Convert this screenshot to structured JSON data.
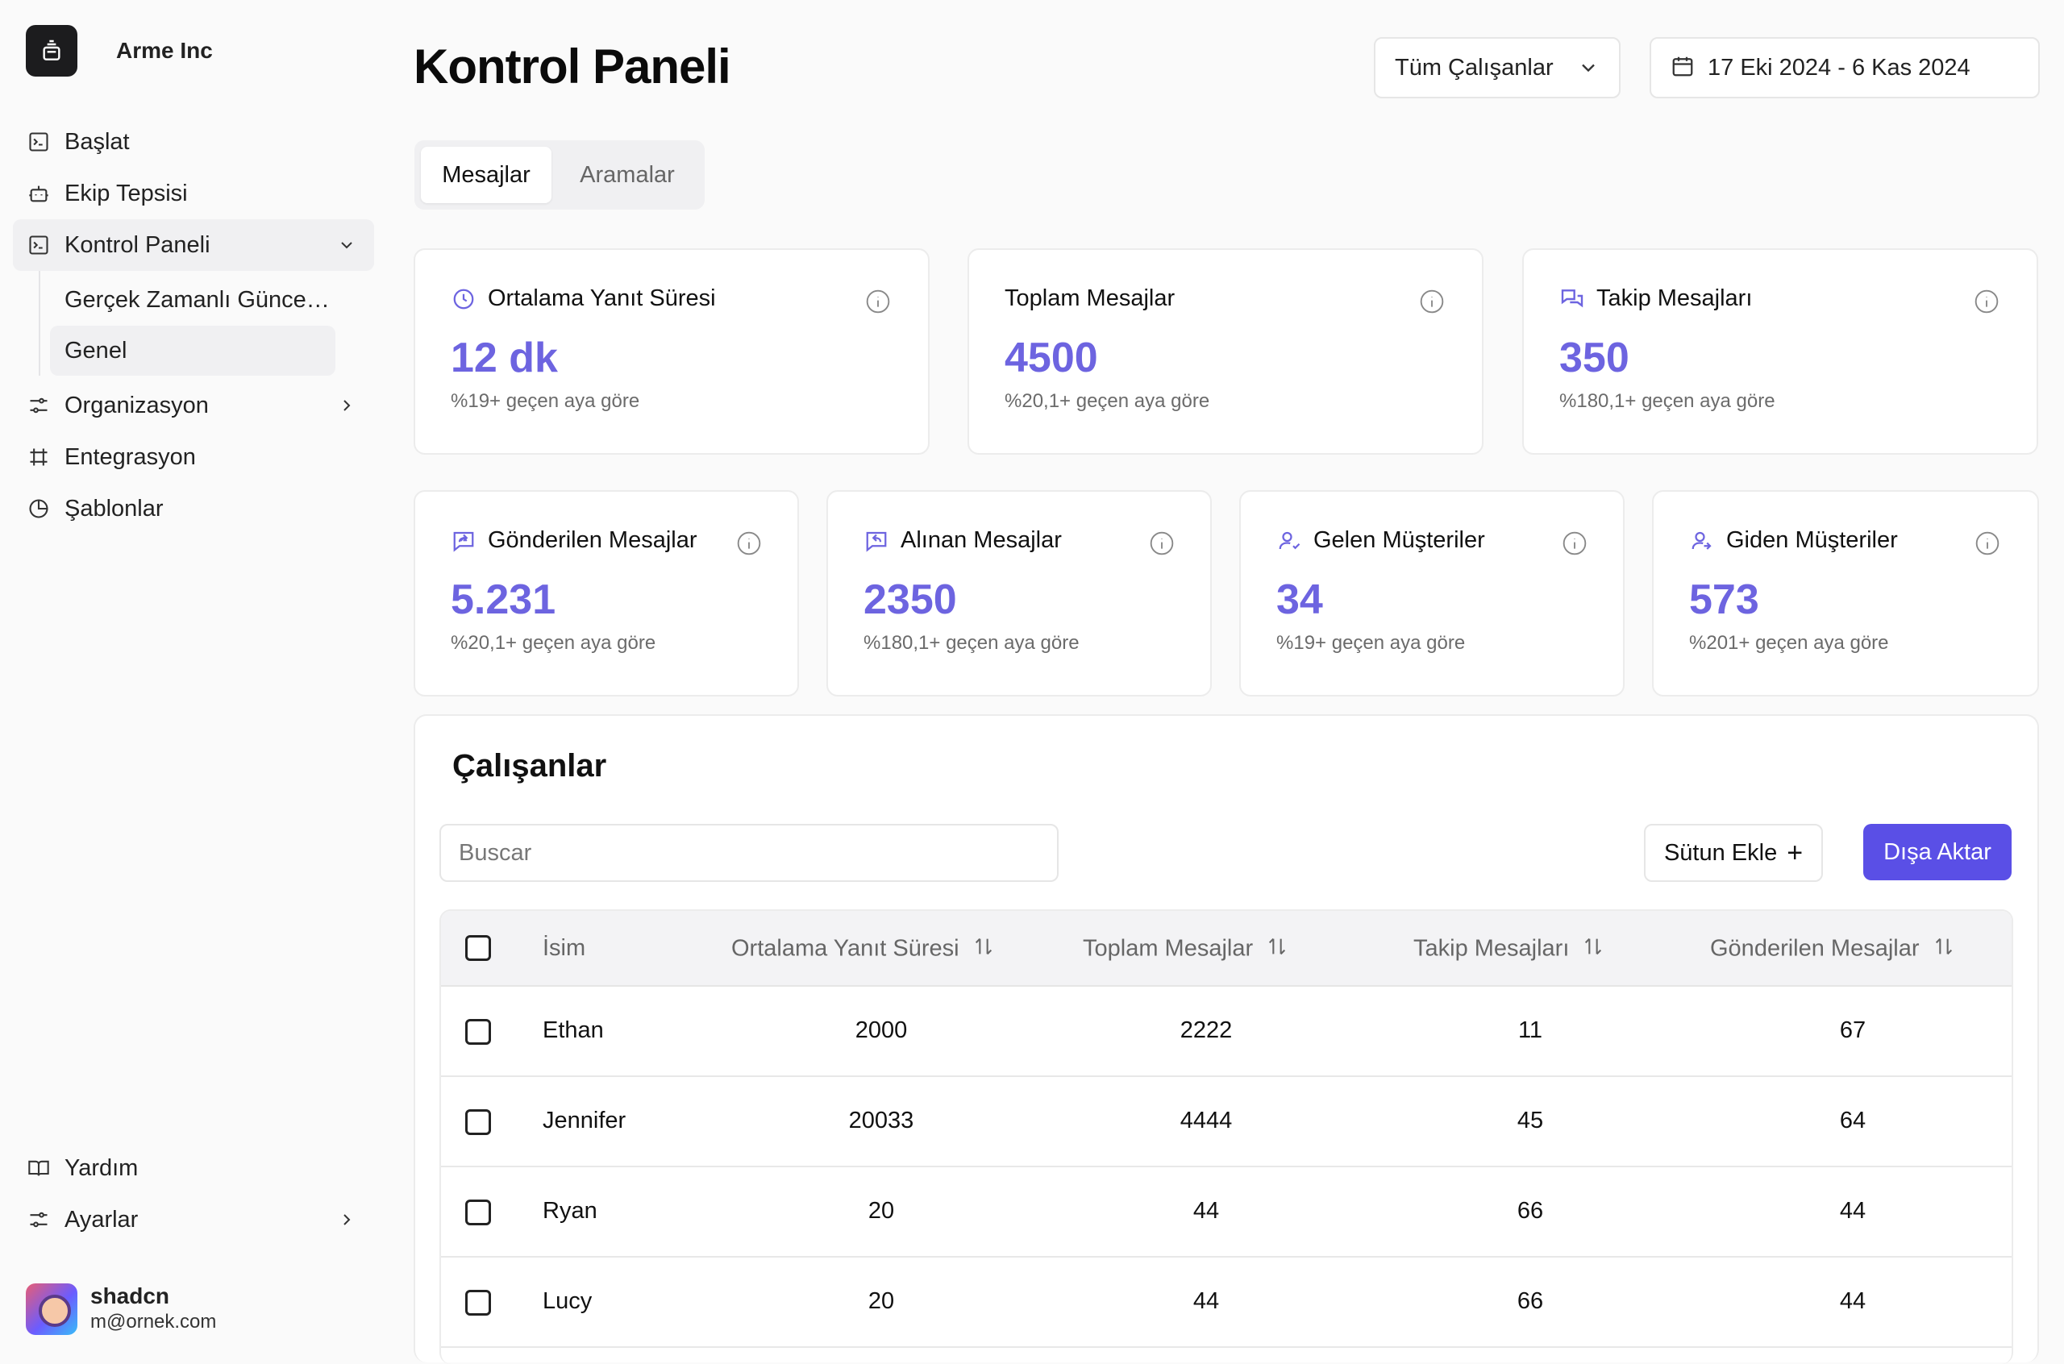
{
  "brand": {
    "name": "Arme Inc"
  },
  "sidebar": {
    "items": [
      {
        "label": "Başlat"
      },
      {
        "label": "Ekip Tepsisi"
      },
      {
        "label": "Kontrol Paneli"
      },
      {
        "label": "Organizasyon"
      },
      {
        "label": "Entegrasyon"
      },
      {
        "label": "Şablonlar"
      }
    ],
    "subitems": [
      {
        "label": "Gerçek Zamanlı Güncellemeler"
      },
      {
        "label": "Genel"
      }
    ],
    "bottom": [
      {
        "label": "Yardım"
      },
      {
        "label": "Ayarlar"
      }
    ]
  },
  "user": {
    "name": "shadcn",
    "email": "m@ornek.com"
  },
  "header": {
    "title": "Kontrol Paneli",
    "employee_filter": "Tüm Çalışanlar",
    "date_range": "17 Eki 2024 - 6 Kas 2024"
  },
  "tabs": [
    {
      "label": "Mesajlar"
    },
    {
      "label": "Aramalar"
    }
  ],
  "stats": [
    {
      "title": "Ortalama Yanıt Süresi",
      "value": "12 dk",
      "change": "%19+ geçen aya göre",
      "icon": "clock-icon"
    },
    {
      "title": "Toplam Mesajlar",
      "value": "4500",
      "change": "%20,1+ geçen aya göre",
      "icon": ""
    },
    {
      "title": "Takip Mesajları",
      "value": "350",
      "change": "%180,1+ geçen aya göre",
      "icon": "chat-icon"
    },
    {
      "title": "Gönderilen Mesajlar",
      "value": "5.231",
      "change": "%20,1+ geçen aya göre",
      "icon": "message-forward-icon"
    },
    {
      "title": "Alınan Mesajlar",
      "value": "2350",
      "change": "%180,1+ geçen aya göre",
      "icon": "message-reply-icon"
    },
    {
      "title": "Gelen Müşteriler",
      "value": "34",
      "change": "%19+ geçen aya göre",
      "icon": "user-incoming-icon"
    },
    {
      "title": "Giden Müşteriler",
      "value": "573",
      "change": "%201+ geçen aya göre",
      "icon": "user-outgoing-icon"
    }
  ],
  "employees": {
    "title": "Çalışanlar",
    "search_placeholder": "Buscar",
    "add_column": "Sütun Ekle",
    "export": "Dışa Aktar",
    "columns": [
      "İsim",
      "Ortalama Yanıt Süresi",
      "Toplam Mesajlar",
      "Takip Mesajları",
      "Gönderilen Mesajlar"
    ],
    "rows": [
      {
        "name": "Ethan",
        "avg": "2000",
        "total": "2222",
        "followup": "11",
        "sent": "67"
      },
      {
        "name": "Jennifer",
        "avg": "20033",
        "total": "4444",
        "followup": "45",
        "sent": "64"
      },
      {
        "name": "Ryan",
        "avg": "20",
        "total": "44",
        "followup": "66",
        "sent": "44"
      },
      {
        "name": "Lucy",
        "avg": "20",
        "total": "44",
        "followup": "66",
        "sent": "44"
      }
    ]
  },
  "colors": {
    "accent": "#6d64e0",
    "primary_button": "#5a4fe6"
  }
}
